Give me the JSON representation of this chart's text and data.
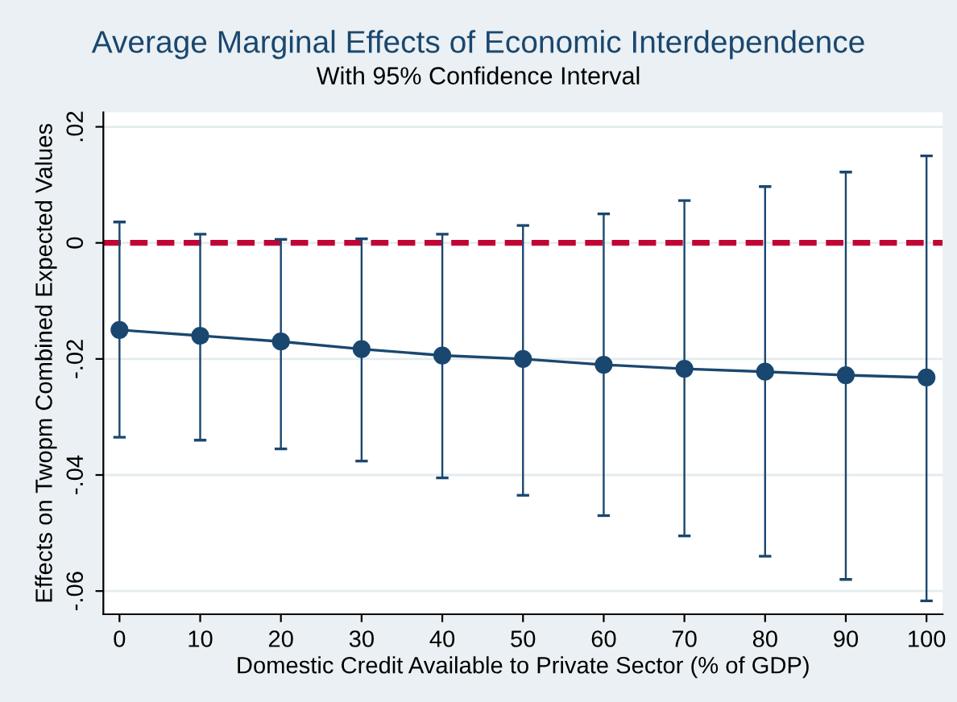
{
  "chart_data": {
    "type": "line",
    "title": "Average Marginal Effects of Economic Interdependence",
    "subtitle": "With 95% Confidence Interval",
    "xlabel": "Domestic Credit Available to Private Sector (% of GDP)",
    "ylabel": "Effects on Twopm Combined Expected Values",
    "x": [
      0,
      10,
      20,
      30,
      40,
      50,
      60,
      70,
      80,
      90,
      100
    ],
    "series": [
      {
        "color": "#1a476f",
        "values": [
          -0.015,
          -0.016,
          -0.017,
          -0.0183,
          -0.0194,
          -0.02,
          -0.021,
          -0.0217,
          -0.0222,
          -0.0228,
          -0.0232
        ],
        "errors": [
          [
            -0.0335,
            0.0036
          ],
          [
            -0.034,
            0.0015
          ],
          [
            -0.0355,
            0.0006
          ],
          [
            -0.0376,
            0.0007
          ],
          [
            -0.0405,
            0.0015
          ],
          [
            -0.0435,
            0.003
          ],
          [
            -0.047,
            0.005
          ],
          [
            -0.0505,
            0.0073
          ],
          [
            -0.054,
            0.0097
          ],
          [
            -0.058,
            0.0122
          ],
          [
            -0.0617,
            0.015
          ]
        ]
      }
    ],
    "marker": "circle",
    "line_style": "solid",
    "xlim": [
      -2,
      102
    ],
    "xticks": [
      0,
      10,
      20,
      30,
      40,
      50,
      60,
      70,
      80,
      90,
      100
    ],
    "ylim": [
      -0.064,
      0.0225
    ],
    "yticks": [
      {
        "value": -0.06,
        "label": "-.06"
      },
      {
        "value": -0.04,
        "label": "-.04"
      },
      {
        "value": -0.02,
        "label": "-.02"
      },
      0,
      {
        "value": 0.02,
        "label": ".02"
      }
    ],
    "grid": "y",
    "ref_lines": [
      {
        "axis": "y",
        "value": 0,
        "color": "#c10534",
        "line_style": "dashed"
      }
    ]
  }
}
